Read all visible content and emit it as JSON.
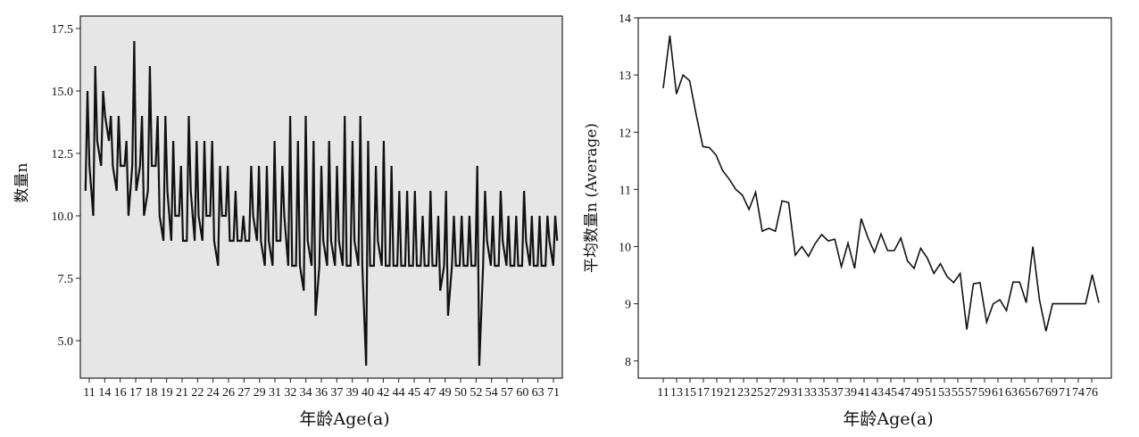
{
  "chart_data": [
    {
      "type": "line",
      "title": "",
      "xlabel": "年龄Age(a)",
      "ylabel": "数量n",
      "ylim": [
        3.5,
        18.0
      ],
      "yticks": [
        "5.0",
        "7.5",
        "10.0",
        "12.5",
        "15.0",
        "17.5"
      ],
      "ytick_values": [
        5.0,
        7.5,
        10.0,
        12.5,
        15.0,
        17.5
      ],
      "xtick_labels": [
        "11",
        "14",
        "16",
        "17",
        "18",
        "19",
        "21",
        "22",
        "24",
        "26",
        "27",
        "29",
        "31",
        "32",
        "34",
        "36",
        "37",
        "39",
        "40",
        "42",
        "44",
        "45",
        "47",
        "49",
        "50",
        "52",
        "54",
        "57",
        "60",
        "63",
        "71"
      ],
      "background": "#e6e6e6",
      "grid": false,
      "series": [
        {
          "color": "#111111",
          "x": [
            11,
            11,
            11,
            12,
            12,
            12,
            13,
            13,
            13,
            14,
            14,
            14,
            15,
            15,
            15,
            16,
            16,
            16,
            17,
            17,
            17,
            18,
            18,
            18,
            19,
            19,
            19,
            20,
            20,
            20,
            21,
            21,
            21,
            22,
            22,
            22,
            23,
            23,
            23,
            24,
            24,
            24,
            25,
            25,
            25,
            26,
            26,
            26,
            27,
            27,
            27,
            28,
            28,
            28,
            29,
            29,
            29,
            30,
            30,
            30,
            31,
            31,
            31,
            32,
            32,
            32,
            33,
            33,
            33,
            34,
            34,
            34,
            35,
            35,
            35,
            36,
            36,
            36,
            37,
            37,
            37,
            38,
            38,
            38,
            39,
            39,
            39,
            40,
            40,
            40,
            41,
            41,
            41,
            42,
            42,
            42,
            43,
            43,
            43,
            44,
            44,
            44,
            45,
            45,
            45,
            46,
            46,
            46,
            47,
            47,
            47,
            48,
            48,
            48,
            49,
            49,
            49,
            50,
            50,
            50,
            51,
            51,
            51,
            52,
            52,
            52,
            53,
            53,
            53,
            54,
            54,
            54,
            55,
            55,
            55,
            56,
            56,
            56,
            57,
            57,
            57,
            58,
            58,
            58,
            59,
            59,
            59,
            60,
            60,
            60,
            61,
            61,
            61,
            62,
            62,
            62,
            63,
            63,
            63,
            64,
            64,
            64,
            65,
            65,
            65,
            66,
            66,
            66,
            67,
            67,
            67,
            68,
            68,
            68,
            69,
            69,
            69,
            70,
            70,
            70,
            71,
            71,
            71
          ],
          "y": [
            11,
            15,
            12,
            10,
            16,
            13,
            12,
            15,
            14,
            13,
            14,
            12,
            11,
            14,
            12,
            12,
            13,
            10,
            12,
            17,
            11,
            12,
            14,
            10,
            11,
            16,
            12,
            12,
            14,
            10,
            9,
            14,
            11,
            9,
            13,
            10,
            10,
            12,
            9,
            9,
            14,
            11,
            9,
            13,
            10,
            9,
            13,
            10,
            10,
            13,
            9,
            8,
            12,
            10,
            10,
            12,
            9,
            9,
            11,
            9,
            9,
            10,
            9,
            9,
            12,
            10,
            9,
            12,
            9,
            8,
            12,
            9,
            8,
            13,
            9,
            9,
            12,
            10,
            8,
            14,
            8,
            8,
            13,
            8,
            7,
            14,
            9,
            8,
            13,
            6,
            8,
            12,
            9,
            8,
            13,
            9,
            8,
            12,
            9,
            8,
            14,
            8,
            8,
            13,
            9,
            8,
            14,
            8,
            4,
            13,
            8,
            8,
            12,
            9,
            8,
            13,
            8,
            8,
            12,
            8,
            8,
            11,
            8,
            8,
            11,
            8,
            8,
            11,
            8,
            8,
            10,
            8,
            8,
            11,
            8,
            8,
            10,
            7,
            8,
            11,
            6,
            8,
            10,
            8,
            8,
            10,
            8,
            8,
            10,
            8,
            8,
            12,
            4,
            8,
            11,
            9,
            8,
            10,
            8,
            8,
            11,
            9,
            8,
            10,
            8,
            8,
            10,
            8,
            8,
            11,
            9,
            8,
            10,
            8,
            8,
            10,
            8,
            8,
            10,
            9,
            8,
            10,
            9
          ]
        }
      ]
    },
    {
      "type": "line",
      "title": "",
      "xlabel": "年龄Age(a)",
      "ylabel": "平均数量n (Average)",
      "ylim": [
        7.7,
        14.0
      ],
      "yticks": [
        "8",
        "9",
        "10",
        "11",
        "12",
        "13",
        "14"
      ],
      "ytick_values": [
        8,
        9,
        10,
        11,
        12,
        13,
        14
      ],
      "xtick_labels": [
        "11",
        "13",
        "15",
        "17",
        "19",
        "21",
        "23",
        "25",
        "27",
        "29",
        "31",
        "33",
        "35",
        "37",
        "39",
        "41",
        "43",
        "45",
        "47",
        "49",
        "51",
        "53",
        "55",
        "57",
        "59",
        "61",
        "63",
        "65",
        "67",
        "69",
        "71",
        "74",
        "76"
      ],
      "background": "#ffffff",
      "grid": false,
      "series": [
        {
          "color": "#111111",
          "x": [
            11,
            12,
            13,
            14,
            15,
            16,
            17,
            18,
            19,
            20,
            21,
            22,
            23,
            24,
            25,
            26,
            27,
            28,
            29,
            30,
            31,
            32,
            33,
            34,
            35,
            36,
            37,
            38,
            39,
            40,
            41,
            42,
            43,
            44,
            45,
            46,
            47,
            48,
            49,
            50,
            51,
            52,
            53,
            54,
            55,
            56,
            57,
            58,
            59,
            60,
            61,
            62,
            63,
            64,
            65,
            66,
            67,
            68,
            69,
            70,
            71,
            72,
            73,
            74,
            75,
            76,
            77
          ],
          "y": [
            12.77,
            13.69,
            12.67,
            13.0,
            12.9,
            12.3,
            11.75,
            11.73,
            11.6,
            11.33,
            11.18,
            11.0,
            10.9,
            10.65,
            10.95,
            10.27,
            10.32,
            10.27,
            10.8,
            10.77,
            9.85,
            10.0,
            9.83,
            10.05,
            10.21,
            10.1,
            10.13,
            9.65,
            10.06,
            9.62,
            10.49,
            10.16,
            9.9,
            10.22,
            9.93,
            9.93,
            10.15,
            9.75,
            9.62,
            9.97,
            9.8,
            9.53,
            9.7,
            9.48,
            9.37,
            9.53,
            8.55,
            9.35,
            9.37,
            8.68,
            9.0,
            9.07,
            8.88,
            9.38,
            9.38,
            9.02,
            10.0,
            9.07,
            8.52,
            9.0,
            9.0,
            9.0,
            9.0,
            9.0,
            9.0,
            9.51,
            9.02
          ]
        }
      ]
    }
  ]
}
